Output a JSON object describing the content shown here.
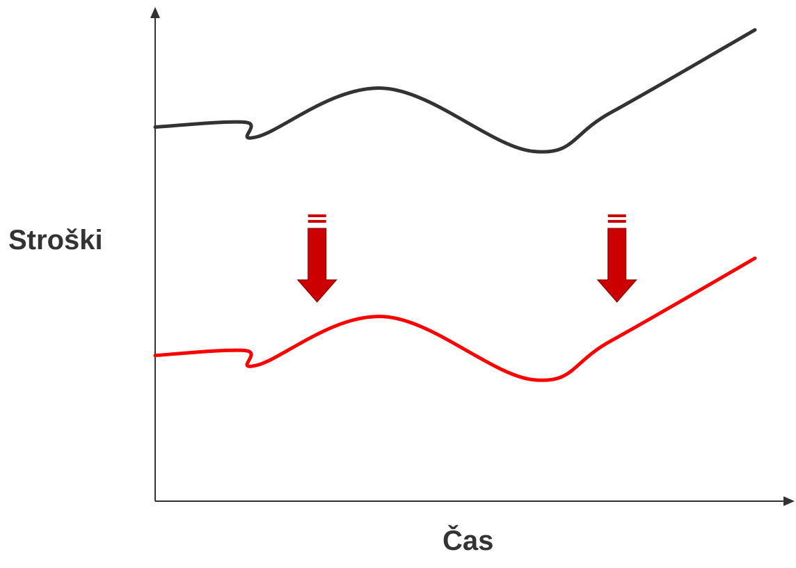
{
  "chart_data": {
    "type": "line",
    "title": "",
    "xlabel": "Čas",
    "ylabel": "Stroški",
    "grid": false,
    "legend": "none",
    "axes_ticks": false,
    "x": [
      0,
      0.15,
      0.17,
      0.38,
      0.63,
      0.76,
      1.0
    ],
    "series": [
      {
        "color": "#333333",
        "values": [
          0.77,
          0.78,
          0.75,
          0.85,
          0.72,
          0.8,
          0.97
        ]
      },
      {
        "color": "#ff0000",
        "values": [
          0.3,
          0.31,
          0.28,
          0.38,
          0.25,
          0.33,
          0.5
        ]
      }
    ],
    "annotations": [
      {
        "type": "arrow-down",
        "x": 0.27,
        "color": "#cc0000"
      },
      {
        "type": "arrow-down",
        "x": 0.77,
        "color": "#cc0000"
      }
    ]
  }
}
